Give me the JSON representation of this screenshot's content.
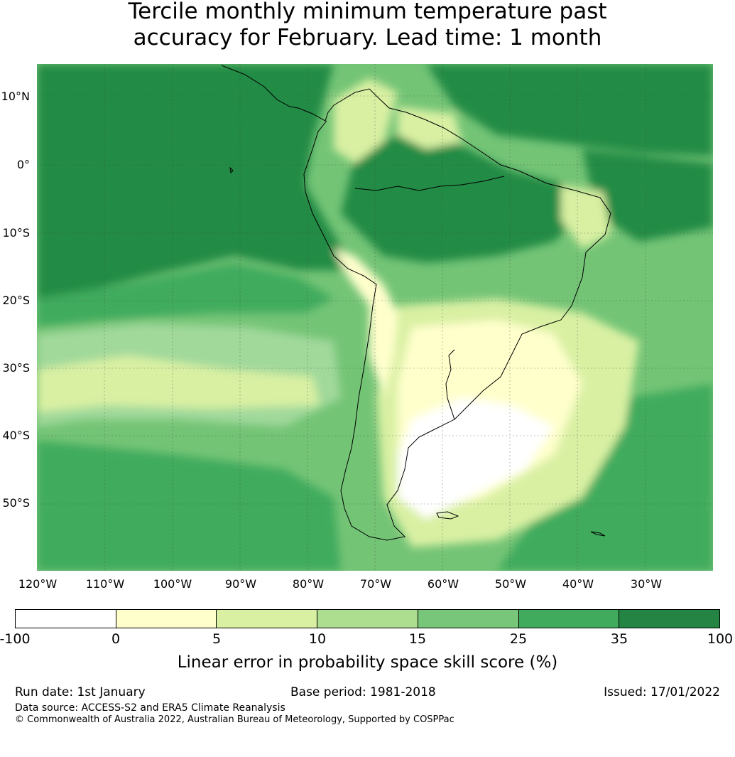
{
  "title": {
    "line1": "Tercile monthly minimum temperature past",
    "line2": "accuracy for February. Lead time: 1 month"
  },
  "map": {
    "region": "South America",
    "lat_labels": [
      "10°N",
      "0°",
      "10°S",
      "20°S",
      "30°S",
      "40°S",
      "50°S"
    ],
    "lon_labels": [
      "120°W",
      "110°W",
      "100°W",
      "90°W",
      "80°W",
      "70°W",
      "60°W",
      "50°W",
      "40°W",
      "30°W"
    ],
    "colors": {
      "ocean_band_dark": "#238b45",
      "mid": "#41ab5d",
      "light": "#74c476",
      "pale": "#a1d99b",
      "paler": "#d9f0a3",
      "palest": "#ffffcc",
      "white": "#ffffff",
      "coast": "#000000"
    }
  },
  "colorbar": {
    "ticks": [
      "-100",
      "0",
      "5",
      "10",
      "15",
      "25",
      "35",
      "100"
    ],
    "colors": [
      "#ffffff",
      "#ffffcc",
      "#d9f0a3",
      "#addd8e",
      "#78c679",
      "#41ab5d",
      "#238443"
    ],
    "label": "Linear error in probability space skill score (%)"
  },
  "footer": {
    "run_date": "Run date: 1st January",
    "base_period": "Base period: 1981-2018",
    "issued": "Issued: 17/01/2022",
    "data_source": "Data source: ACCESS-S2 and ERA5 Climate Reanalysis",
    "copyright": "© Commonwealth of Australia 2022, Australian Bureau of Meteorology, Supported by COSPPac"
  }
}
